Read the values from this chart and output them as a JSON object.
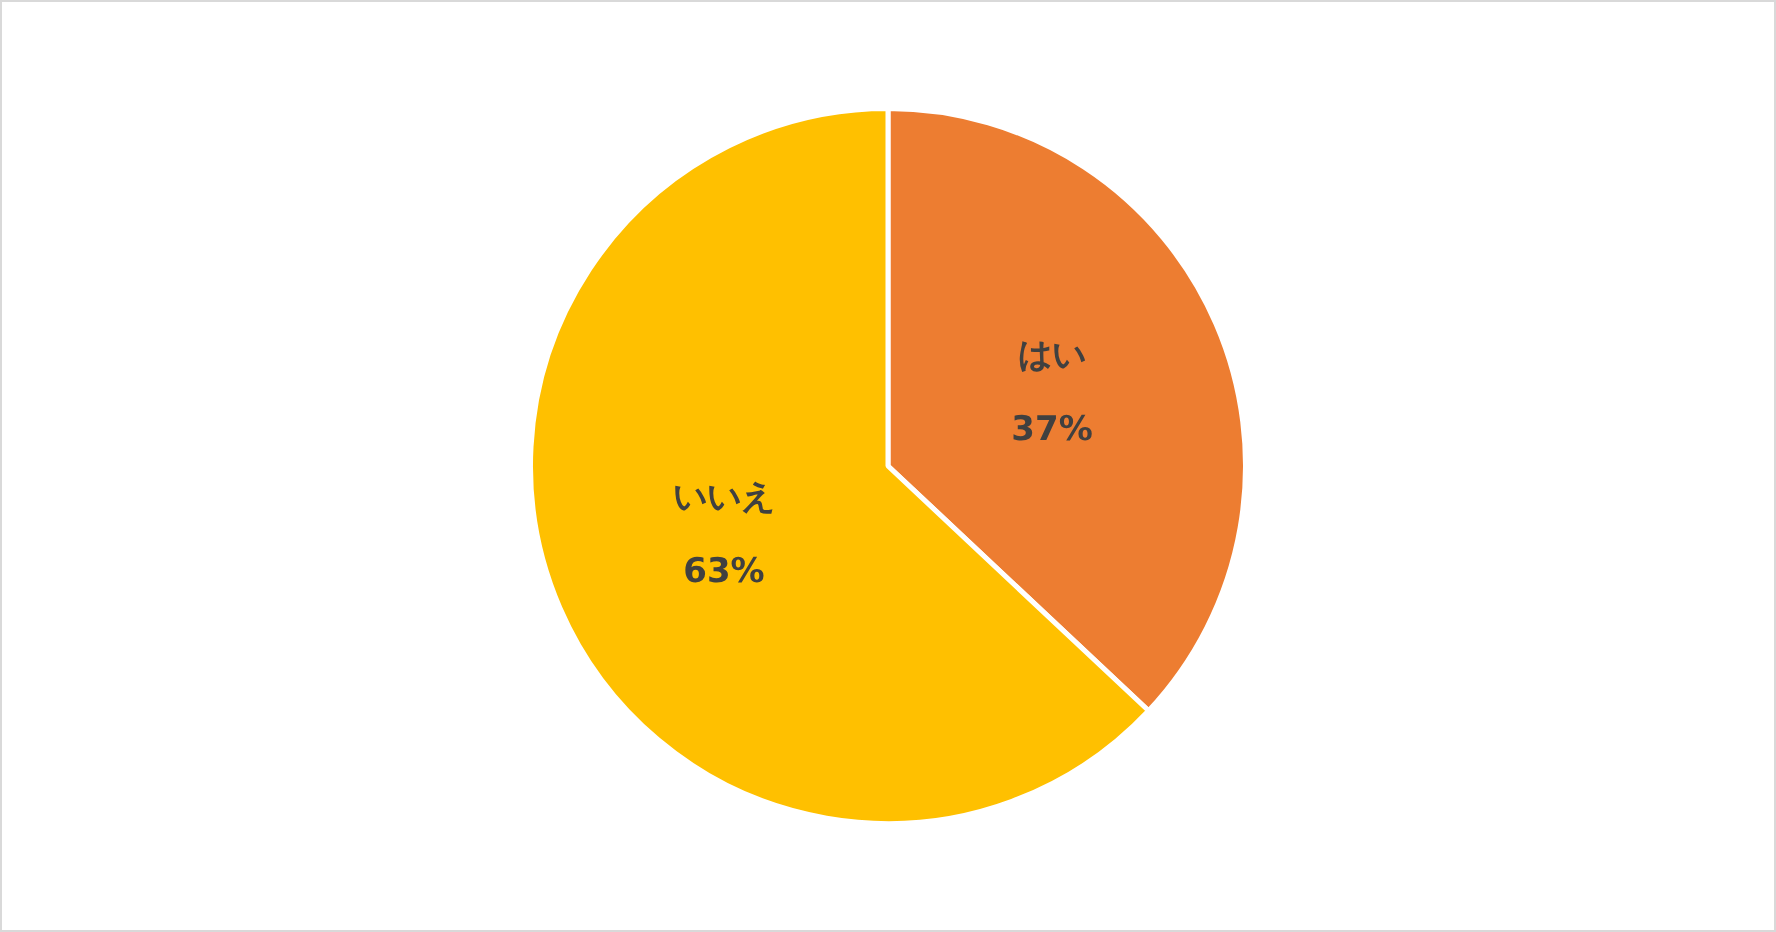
{
  "chart_data": {
    "type": "pie",
    "categories": [
      "はい",
      "いいえ"
    ],
    "values": [
      37,
      63
    ],
    "colors": [
      "#ed7d31",
      "#ffc000"
    ],
    "value_labels": [
      "37%",
      "63%"
    ],
    "legend": false
  }
}
